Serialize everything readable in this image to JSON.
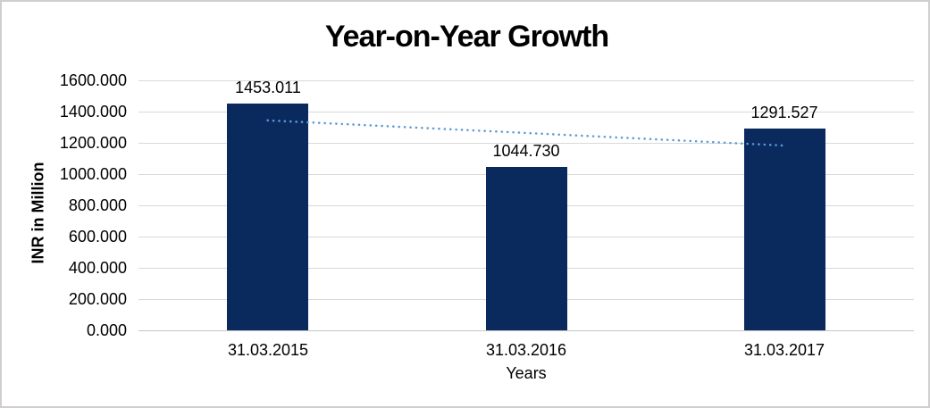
{
  "chart_data": {
    "type": "bar",
    "title": "Year-on-Year Growth",
    "categories": [
      "31.03.2015",
      "31.03.2016",
      "31.03.2017"
    ],
    "values": [
      1453.011,
      1044.73,
      1291.527
    ],
    "value_labels": [
      "1453.011",
      "1044.730",
      "1291.527"
    ],
    "xlabel": "Years",
    "ylabel": "INR in Million",
    "ylim": [
      0,
      1600
    ],
    "ytick_step": 200,
    "ytick_labels": [
      "1600.000",
      "1400.000",
      "1200.000",
      "1000.000",
      "800.000",
      "600.000",
      "400.000",
      "200.000",
      "0.000"
    ],
    "grid": true,
    "legend_position": "none",
    "bar_color": "#0A2A5E",
    "gridline_color": "#D9D9D9",
    "trendline": {
      "type": "linear",
      "style": "dotted",
      "color": "#5B9BD5",
      "start_value": 1343.831,
      "end_value": 1182.347
    }
  }
}
